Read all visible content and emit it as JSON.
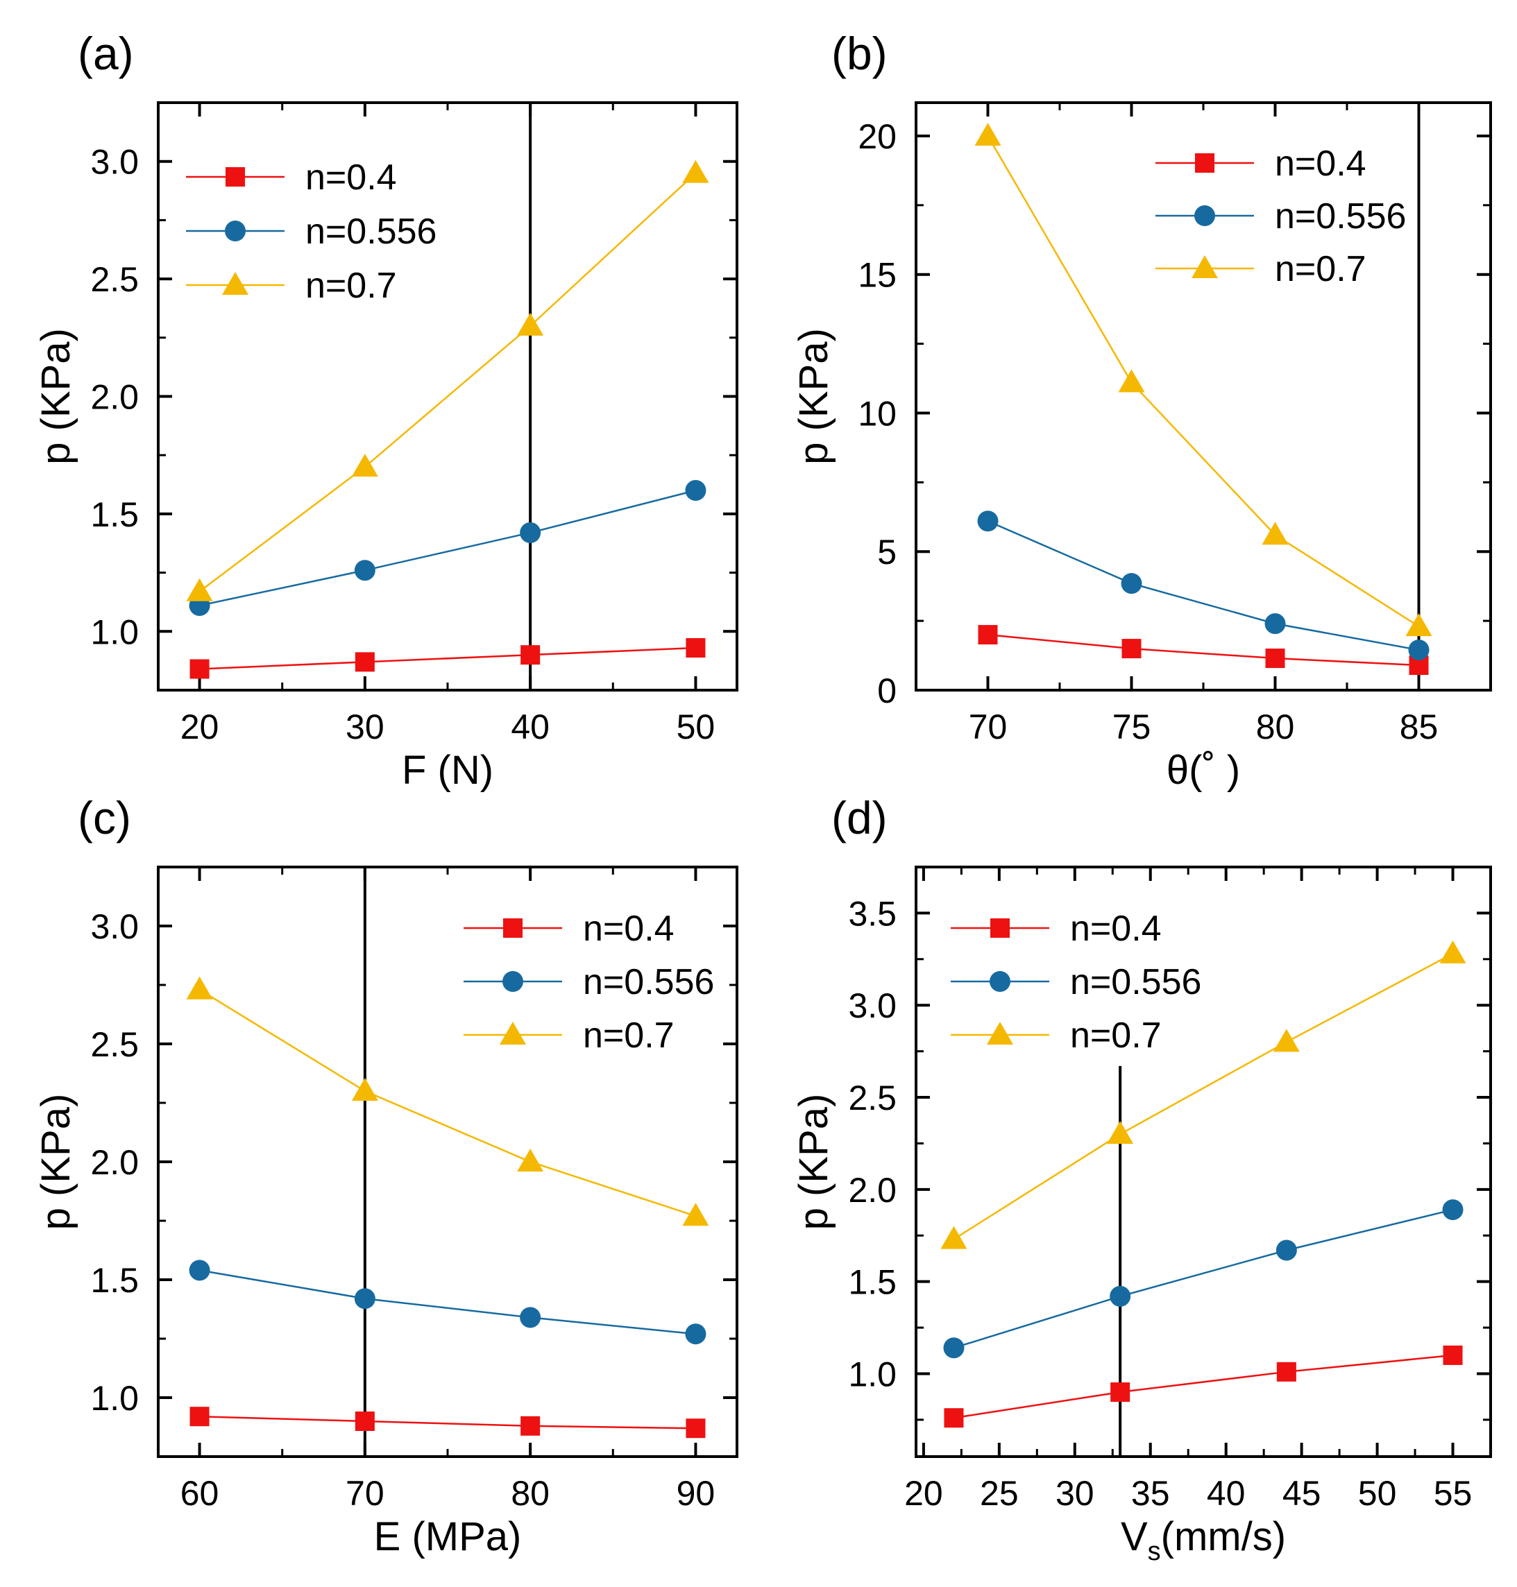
{
  "colors": {
    "n04": "#ee1111",
    "n0556": "#176aa0",
    "n07": "#f5b800",
    "axis": "#000000"
  },
  "chart_data": [
    {
      "id": "a",
      "type": "line",
      "panel_label": "(a)",
      "xlabel": "F (N)",
      "ylabel": "p (KPa)",
      "xlim": [
        17.5,
        52.5
      ],
      "ylim": [
        0.75,
        3.25
      ],
      "xticks": [
        20,
        30,
        40,
        50
      ],
      "xtick_labels": [
        "20",
        "30",
        "40",
        "50"
      ],
      "yticks": [
        1.0,
        1.5,
        2.0,
        2.5,
        3.0
      ],
      "ytick_labels": [
        "1.0",
        "1.5",
        "2.0",
        "2.5",
        "3.0"
      ],
      "x": [
        20,
        30,
        40,
        50
      ],
      "vline": 40,
      "legend_position": "top-left",
      "series": [
        {
          "name": "n=0.4",
          "marker": "square",
          "color_key": "n04",
          "values": [
            0.84,
            0.87,
            0.9,
            0.93
          ]
        },
        {
          "name": "n=0.556",
          "marker": "circle",
          "color_key": "n0556",
          "values": [
            1.11,
            1.26,
            1.42,
            1.6
          ]
        },
        {
          "name": "n=0.7",
          "marker": "triangle",
          "color_key": "n07",
          "values": [
            1.17,
            1.7,
            2.3,
            2.95
          ]
        }
      ]
    },
    {
      "id": "b",
      "type": "line",
      "panel_label": "(b)",
      "xlabel": "θ(˚ )",
      "ylabel": "p (KPa)",
      "xlim": [
        67.5,
        87.5
      ],
      "ylim": [
        0,
        21.2
      ],
      "xticks": [
        70,
        75,
        80,
        85
      ],
      "xtick_labels": [
        "70",
        "75",
        "80",
        "85"
      ],
      "yticks": [
        0,
        5,
        10,
        15,
        20
      ],
      "ytick_labels": [
        "0",
        "5",
        "10",
        "15",
        "20"
      ],
      "x": [
        70,
        75,
        80,
        85
      ],
      "vline": 85,
      "legend_position": "top-right",
      "series": [
        {
          "name": "n=0.4",
          "marker": "square",
          "color_key": "n04",
          "values": [
            2.0,
            1.5,
            1.15,
            0.9
          ]
        },
        {
          "name": "n=0.556",
          "marker": "circle",
          "color_key": "n0556",
          "values": [
            6.1,
            3.85,
            2.4,
            1.45
          ]
        },
        {
          "name": "n=0.7",
          "marker": "triangle",
          "color_key": "n07",
          "values": [
            20.0,
            11.1,
            5.6,
            2.3
          ]
        }
      ]
    },
    {
      "id": "c",
      "type": "line",
      "panel_label": "(c)",
      "xlabel": "E (MPa)",
      "ylabel": "p (KPa)",
      "xlim": [
        57.5,
        92.5
      ],
      "ylim": [
        0.75,
        3.25
      ],
      "xticks": [
        60,
        70,
        80,
        90
      ],
      "xtick_labels": [
        "60",
        "70",
        "80",
        "90"
      ],
      "yticks": [
        1.0,
        1.5,
        2.0,
        2.5,
        3.0
      ],
      "ytick_labels": [
        "1.0",
        "1.5",
        "2.0",
        "2.5",
        "3.0"
      ],
      "x": [
        60,
        70,
        80,
        90
      ],
      "vline": 70,
      "legend_position": "top-right",
      "series": [
        {
          "name": "n=0.4",
          "marker": "square",
          "color_key": "n04",
          "values": [
            0.92,
            0.9,
            0.88,
            0.87
          ]
        },
        {
          "name": "n=0.556",
          "marker": "circle",
          "color_key": "n0556",
          "values": [
            1.54,
            1.42,
            1.34,
            1.27
          ]
        },
        {
          "name": "n=0.7",
          "marker": "triangle",
          "color_key": "n07",
          "values": [
            2.73,
            2.3,
            2.0,
            1.77
          ]
        }
      ]
    },
    {
      "id": "d",
      "type": "line",
      "panel_label": "(d)",
      "xlabel_main": "V",
      "xlabel_sub": "s",
      "xlabel_rest": "(mm/s)",
      "ylabel": "p (KPa)",
      "xlim": [
        19.5,
        57.5
      ],
      "ylim": [
        0.55,
        3.75
      ],
      "xticks": [
        20,
        25,
        30,
        35,
        40,
        45,
        50,
        55
      ],
      "xtick_labels": [
        "20",
        "25",
        "30",
        "35",
        "40",
        "45",
        "50",
        "55"
      ],
      "yticks": [
        1.0,
        1.5,
        2.0,
        2.5,
        3.0,
        3.5
      ],
      "ytick_labels": [
        "1.0",
        "1.5",
        "2.0",
        "2.5",
        "3.0",
        "3.5"
      ],
      "x": [
        22,
        33,
        44,
        55
      ],
      "vline": 33,
      "vline_top": 2.67,
      "legend_position": "top-left",
      "series": [
        {
          "name": "n=0.4",
          "marker": "square",
          "color_key": "n04",
          "values": [
            0.76,
            0.9,
            1.01,
            1.1
          ]
        },
        {
          "name": "n=0.556",
          "marker": "circle",
          "color_key": "n0556",
          "values": [
            1.14,
            1.42,
            1.67,
            1.89
          ]
        },
        {
          "name": "n=0.7",
          "marker": "triangle",
          "color_key": "n07",
          "values": [
            1.73,
            2.3,
            2.8,
            3.28
          ]
        }
      ]
    }
  ]
}
